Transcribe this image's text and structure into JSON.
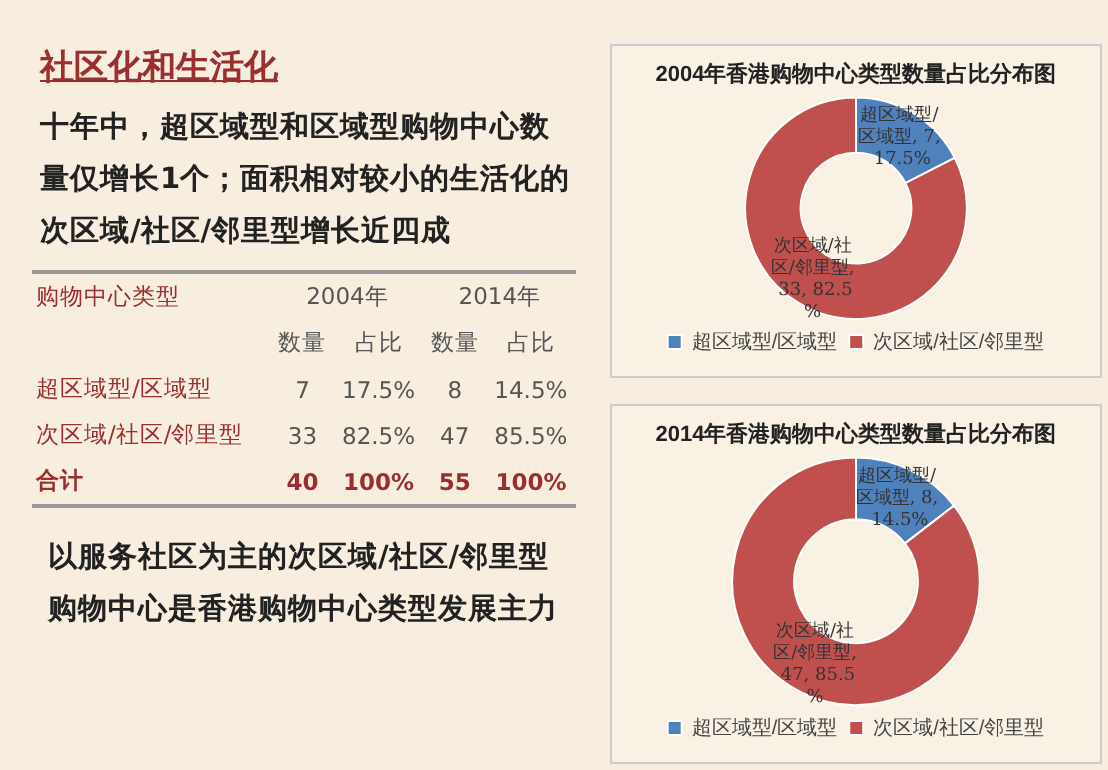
{
  "chart_data": [
    {
      "type": "other",
      "title": "社区化和生活化",
      "subtitle": "十年中，超区域型和区域型购物中心数量仅增长1个；面积相对较小的生活化的次区域/社区/邻里型增长近四成",
      "annotations": [
        "购物中心类型",
        "2004年",
        "2014年",
        "数量",
        "占比",
        "数量",
        "占比",
        "超区域型/区域型",
        "7",
        "17.5%",
        "8",
        "14.5%",
        "次区域/社区/邻里型",
        "33",
        "82.5%",
        "47",
        "85.5%",
        "合计",
        "40",
        "100%",
        "55",
        "100%",
        "以服务社区为主的次区域/社区/邻里型购物中心是香港购物中心类型发展主力"
      ]
    },
    {
      "type": "donut",
      "title": "2004年香港购物中心类型数量占比分布图",
      "categories": [
        "超区域型/区域型",
        "次区域/社区/邻里型"
      ],
      "values": [
        7,
        33
      ],
      "colors": [
        "#4f81bd",
        "#c0504d"
      ],
      "value_labels": [
        "超区域型/区域型, 7, 17.5%",
        "次区域/社区/邻里型, 33, 82.5%"
      ],
      "legend": "bottom"
    },
    {
      "type": "donut",
      "title": "2014年香港购物中心类型数量占比分布图",
      "categories": [
        "超区域型/区域型",
        "次区域/社区/邻里型"
      ],
      "values": [
        8,
        47
      ],
      "colors": [
        "#4f81bd",
        "#c0504d"
      ],
      "value_labels": [
        "超区域型/区域型, 8, 14.5%",
        "次区域/社区/邻里型, 47, 85.5%"
      ],
      "legend": "bottom"
    }
  ]
}
